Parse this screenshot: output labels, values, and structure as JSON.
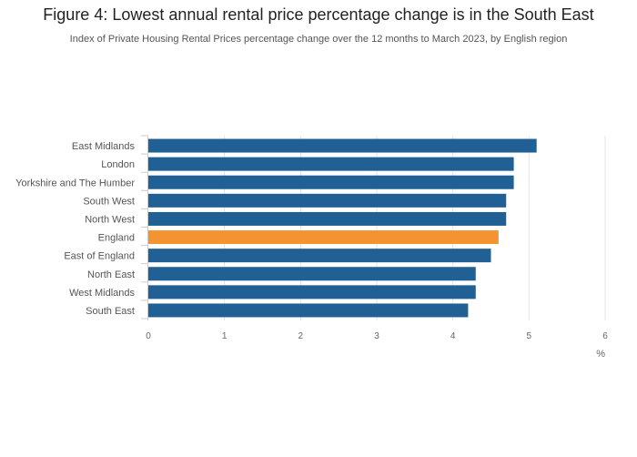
{
  "header": {
    "title": "Figure 4: Lowest annual rental price percentage change is in the South East",
    "subtitle": "Index of Private Housing Rental Prices percentage change over the 12 months to March 2023, by English region"
  },
  "colors": {
    "bar_default": "#206095",
    "bar_highlight": "#F39431",
    "gridline": "#e6e6e6",
    "axis_text": "#666666",
    "label_text": "#555555"
  },
  "chart_data": {
    "type": "bar",
    "orientation": "horizontal",
    "title": "Figure 4: Lowest annual rental price percentage change is in the South East",
    "subtitle": "Index of Private Housing Rental Prices percentage change over the 12 months to March 2023, by English region",
    "categories": [
      "East Midlands",
      "London",
      "Yorkshire and The Humber",
      "South West",
      "North West",
      "England",
      "East of England",
      "North East",
      "West Midlands",
      "South East"
    ],
    "values": [
      5.1,
      4.8,
      4.8,
      4.7,
      4.7,
      4.6,
      4.5,
      4.3,
      4.3,
      4.2
    ],
    "highlight": "England",
    "xlabel": "%",
    "ylabel": "",
    "xlim": [
      0,
      6
    ],
    "xticks": [
      "0",
      "1",
      "2",
      "3",
      "4",
      "5",
      "6"
    ],
    "grid": true,
    "legend": "none"
  }
}
